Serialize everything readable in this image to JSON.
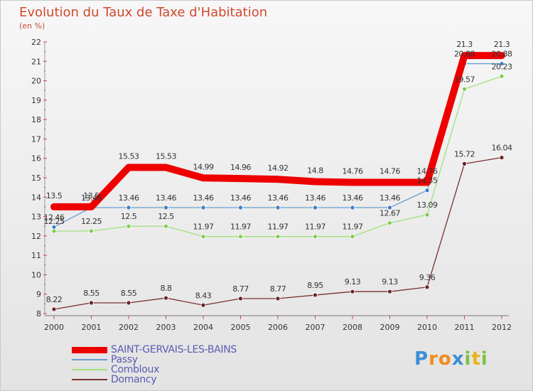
{
  "title": "Evolution du Taux de Taxe d'Habitation",
  "subtitle": "(en %)",
  "logo": {
    "text": "Proxiti",
    "letters": [
      "P",
      "r",
      "o",
      "x",
      "i",
      "t",
      "i"
    ]
  },
  "chart_data": {
    "type": "line",
    "title": "Evolution du Taux de Taxe d'Habitation",
    "ylabel": "(en %)",
    "xlabel": "",
    "x": [
      "2000",
      "2001",
      "2002",
      "2003",
      "2004",
      "2005",
      "2006",
      "2007",
      "2008",
      "2009",
      "2010",
      "2011",
      "2012"
    ],
    "ylim": [
      8,
      22
    ],
    "yticks": [
      "8",
      "9",
      "10",
      "11",
      "12",
      "13",
      "14",
      "15",
      "16",
      "17",
      "18",
      "19",
      "20",
      "21",
      "22"
    ],
    "grid": false,
    "legend": "bottom-left",
    "series": [
      {
        "name": "SAINT-GERVAIS-LES-BAINS",
        "color": "#ee0000",
        "values": [
          13.5,
          13.5,
          15.53,
          15.53,
          14.99,
          14.96,
          14.92,
          14.8,
          14.76,
          14.76,
          14.76,
          21.3,
          21.3
        ],
        "labels": [
          "13.5",
          "13.5",
          "15.53",
          "15.53",
          "14.99",
          "14.96",
          "14.92",
          "14.8",
          "14.76",
          "14.76",
          "14.76",
          "21.3",
          "21.3"
        ]
      },
      {
        "name": "Passy",
        "color": "#6a9fd0",
        "marker": "#3d7ec4",
        "values": [
          12.46,
          13.46,
          13.46,
          13.46,
          13.46,
          13.46,
          13.46,
          13.46,
          13.46,
          13.46,
          14.35,
          20.88,
          20.88
        ],
        "labels": [
          "12.46",
          "13.46",
          "13.46",
          "13.46",
          "13.46",
          "13.46",
          "13.46",
          "13.46",
          "13.46",
          "13.46",
          "14.35",
          "20.88",
          "20.88"
        ]
      },
      {
        "name": "Combloux",
        "color": "#9fe07a",
        "marker": "#7ccc4a",
        "values": [
          12.25,
          12.25,
          12.5,
          12.5,
          11.97,
          11.97,
          11.97,
          11.97,
          11.97,
          12.67,
          13.09,
          19.57,
          20.23
        ],
        "labels": [
          "12.25",
          "12.25",
          "12.5",
          "12.5",
          "11.97",
          "11.97",
          "11.97",
          "11.97",
          "11.97",
          "12.67",
          "13.09",
          "19.57",
          "20.23"
        ]
      },
      {
        "name": "Domancy",
        "color": "#7a3030",
        "marker": "#6a2424",
        "values": [
          8.22,
          8.55,
          8.55,
          8.8,
          8.43,
          8.77,
          8.77,
          8.95,
          9.13,
          9.13,
          9.36,
          15.72,
          16.04
        ],
        "labels": [
          "8.22",
          "8.55",
          "8.55",
          "8.8",
          "8.43",
          "8.77",
          "8.77",
          "8.95",
          "9.13",
          "9.13",
          "9.36",
          "15.72",
          "16.04"
        ]
      }
    ]
  }
}
